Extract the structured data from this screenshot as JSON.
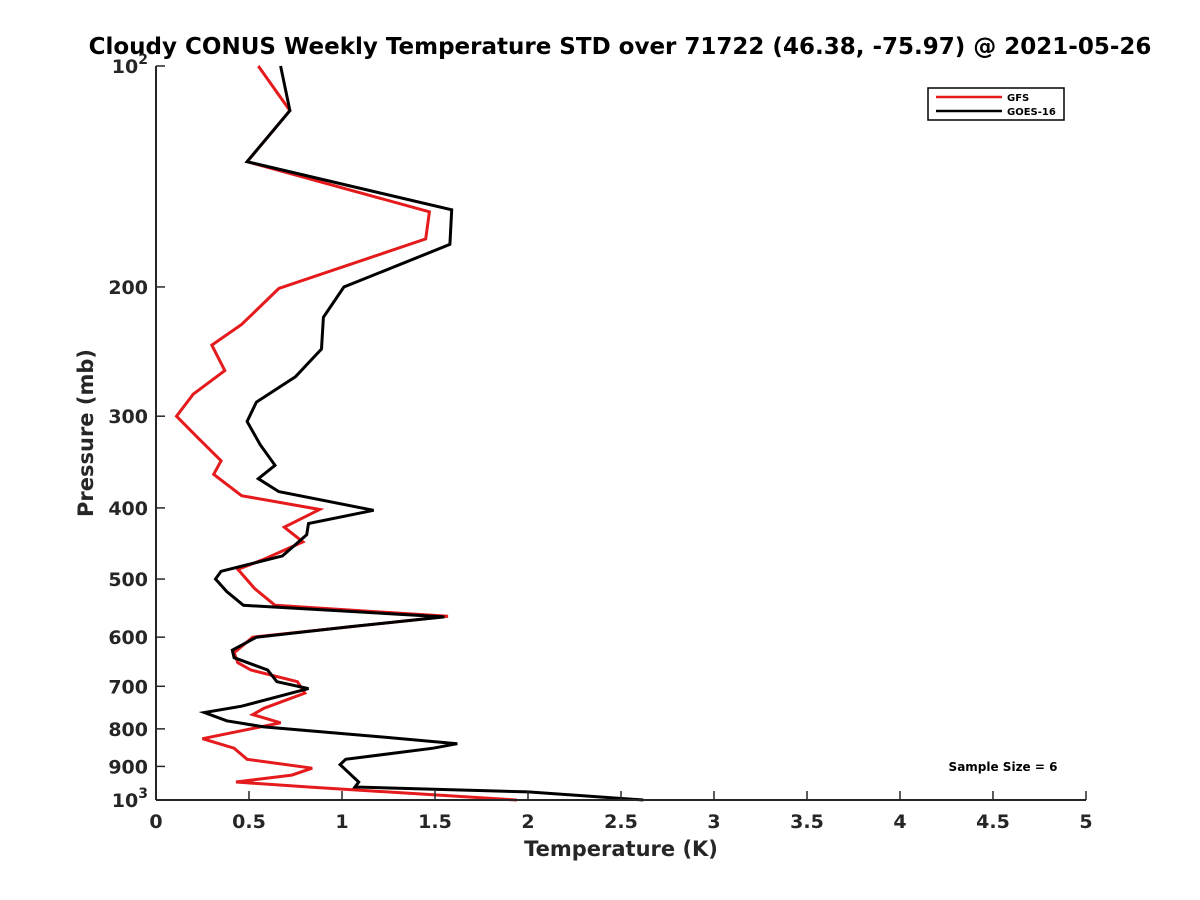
{
  "chart_data": {
    "type": "line",
    "title": "Cloudy CONUS Weekly Temperature STD over 71722 (46.38, -75.97) @ 2021-05-26",
    "xlabel": "Temperature (K)",
    "ylabel": "Pressure (mb)",
    "xlim": [
      0,
      5
    ],
    "ylim": [
      100,
      1000
    ],
    "y_scale": "log",
    "y_reversed": true,
    "x_ticks": [
      "0",
      "0.5",
      "1",
      "1.5",
      "2",
      "2.5",
      "3",
      "3.5",
      "4",
      "4.5",
      "5"
    ],
    "y_ticks": [
      {
        "value": 100,
        "base": "10",
        "exp": "2"
      },
      {
        "value": 200,
        "label": "200"
      },
      {
        "value": 300,
        "label": "300"
      },
      {
        "value": 400,
        "label": "400"
      },
      {
        "value": 500,
        "label": "500"
      },
      {
        "value": 600,
        "label": "600"
      },
      {
        "value": 700,
        "label": "700"
      },
      {
        "value": 800,
        "label": "800"
      },
      {
        "value": 900,
        "label": "900"
      },
      {
        "value": 1000,
        "base": "10",
        "exp": "3"
      }
    ],
    "grid": false,
    "legend_position": "top-right",
    "annotation": "Sample Size = 6",
    "series": [
      {
        "name": "GFS",
        "color": "#e41a1c",
        "points": [
          [
            0.55,
            100
          ],
          [
            0.72,
            115
          ],
          [
            0.49,
            135
          ],
          [
            1.47,
            158
          ],
          [
            1.45,
            172
          ],
          [
            0.66,
            201
          ],
          [
            0.46,
            225
          ],
          [
            0.3,
            240
          ],
          [
            0.37,
            260
          ],
          [
            0.2,
            280
          ],
          [
            0.11,
            300
          ],
          [
            0.22,
            320
          ],
          [
            0.35,
            345
          ],
          [
            0.31,
            360
          ],
          [
            0.46,
            385
          ],
          [
            0.88,
            402
          ],
          [
            0.69,
            425
          ],
          [
            0.79,
            445
          ],
          [
            0.58,
            470
          ],
          [
            0.44,
            485
          ],
          [
            0.53,
            515
          ],
          [
            0.64,
            543
          ],
          [
            1.57,
            562
          ],
          [
            0.52,
            600
          ],
          [
            0.42,
            630
          ],
          [
            0.44,
            650
          ],
          [
            0.51,
            665
          ],
          [
            0.76,
            690
          ],
          [
            0.8,
            715
          ],
          [
            0.58,
            750
          ],
          [
            0.52,
            765
          ],
          [
            0.67,
            785
          ],
          [
            0.25,
            825
          ],
          [
            0.42,
            850
          ],
          [
            0.49,
            880
          ],
          [
            0.84,
            905
          ],
          [
            0.73,
            925
          ],
          [
            0.43,
            945
          ],
          [
            0.82,
            960
          ],
          [
            1.94,
            1000
          ]
        ]
      },
      {
        "name": "GOES-16",
        "color": "#000000",
        "points": [
          [
            0.67,
            100
          ],
          [
            0.72,
            115
          ],
          [
            0.49,
            135
          ],
          [
            1.59,
            157
          ],
          [
            1.58,
            175
          ],
          [
            1.01,
            200
          ],
          [
            0.9,
            220
          ],
          [
            0.89,
            243
          ],
          [
            0.75,
            265
          ],
          [
            0.54,
            287
          ],
          [
            0.49,
            305
          ],
          [
            0.56,
            328
          ],
          [
            0.64,
            350
          ],
          [
            0.55,
            365
          ],
          [
            0.66,
            380
          ],
          [
            1.17,
            403
          ],
          [
            0.82,
            420
          ],
          [
            0.81,
            435
          ],
          [
            0.68,
            465
          ],
          [
            0.35,
            488
          ],
          [
            0.32,
            500
          ],
          [
            0.38,
            520
          ],
          [
            0.47,
            543
          ],
          [
            1.55,
            563
          ],
          [
            1.06,
            580
          ],
          [
            0.54,
            600
          ],
          [
            0.41,
            625
          ],
          [
            0.42,
            640
          ],
          [
            0.6,
            665
          ],
          [
            0.65,
            690
          ],
          [
            0.82,
            705
          ],
          [
            0.46,
            745
          ],
          [
            0.26,
            760
          ],
          [
            0.38,
            780
          ],
          [
            0.58,
            795
          ],
          [
            1.2,
            820
          ],
          [
            1.62,
            838
          ],
          [
            1.49,
            850
          ],
          [
            1.02,
            880
          ],
          [
            0.99,
            895
          ],
          [
            1.09,
            945
          ],
          [
            1.07,
            960
          ],
          [
            2.0,
            975
          ],
          [
            2.62,
            1000
          ]
        ]
      }
    ]
  }
}
